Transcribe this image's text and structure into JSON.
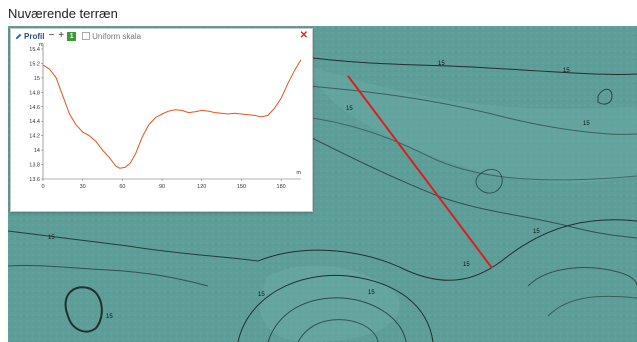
{
  "page": {
    "title": "Nuværende terræn"
  },
  "map": {
    "background_color": "#5e9e99",
    "contour_color": "#1a1a1a",
    "profile_line_color": "#d92020",
    "contour_labels": [
      "15",
      "15",
      "15",
      "15",
      "15",
      "15",
      "15",
      "15",
      "15",
      "15"
    ]
  },
  "profile_panel": {
    "title": "Profil",
    "zoom_out_label": "−",
    "zoom_in_label": "+",
    "count_badge": "1",
    "uniform_scale_label": "Uniform skala",
    "uniform_scale_checked": false,
    "close_icon": "close-icon",
    "edit_icon": "pencil-icon"
  },
  "chart_data": {
    "type": "line",
    "title": "",
    "xlabel": "m",
    "ylabel": "m",
    "xlim": [
      0,
      195
    ],
    "ylim": [
      13.6,
      15.4
    ],
    "x_ticks": [
      0,
      30,
      60,
      90,
      120,
      150,
      180
    ],
    "y_ticks": [
      13.6,
      13.8,
      14,
      14.2,
      14.4,
      14.6,
      14.8,
      15,
      15.2,
      15.4
    ],
    "line_color": "#e8531e",
    "series": [
      {
        "x": [
          0,
          5,
          10,
          15,
          20,
          25,
          30,
          35,
          40,
          45,
          50,
          55,
          58,
          62,
          66,
          70,
          75,
          80,
          85,
          90,
          95,
          100,
          105,
          110,
          115,
          120,
          125,
          130,
          135,
          140,
          145,
          150,
          155,
          160,
          165,
          170,
          175,
          180,
          185,
          190,
          195
        ],
        "y": [
          15.18,
          15.12,
          15.0,
          14.75,
          14.5,
          14.35,
          14.25,
          14.2,
          14.12,
          14.0,
          13.9,
          13.78,
          13.75,
          13.76,
          13.82,
          13.95,
          14.18,
          14.35,
          14.45,
          14.5,
          14.54,
          14.56,
          14.55,
          14.52,
          14.53,
          14.55,
          14.54,
          14.52,
          14.51,
          14.5,
          14.51,
          14.5,
          14.49,
          14.48,
          14.46,
          14.48,
          14.58,
          14.72,
          14.92,
          15.1,
          15.25
        ]
      }
    ]
  }
}
